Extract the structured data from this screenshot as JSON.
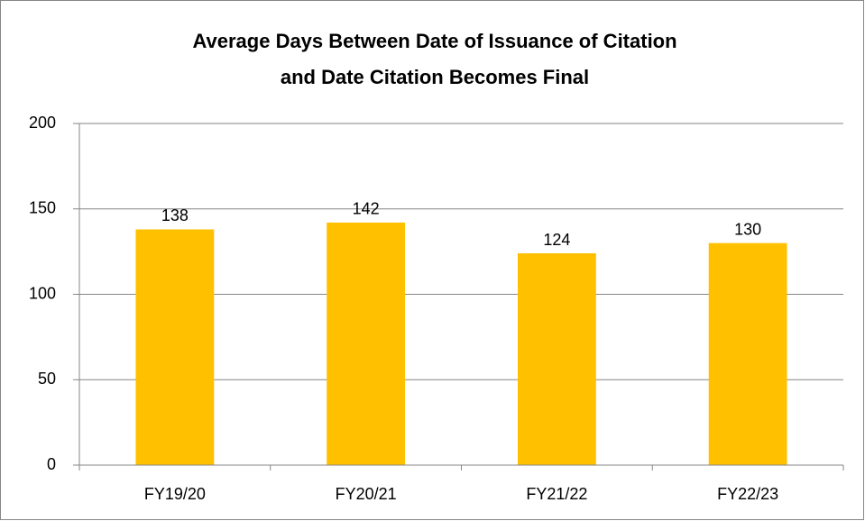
{
  "chart_data": {
    "type": "bar",
    "title": [
      "Average Days Between Date of Issuance of Citation",
      "and Date Citation Becomes Final"
    ],
    "categories": [
      "FY19/20",
      "FY20/21",
      "FY21/22",
      "FY22/23"
    ],
    "values": [
      138,
      142,
      124,
      130
    ],
    "color": "#FFC000",
    "ylim": [
      0,
      200
    ],
    "yticks": [
      0,
      50,
      100,
      150,
      200
    ],
    "grid": true
  }
}
